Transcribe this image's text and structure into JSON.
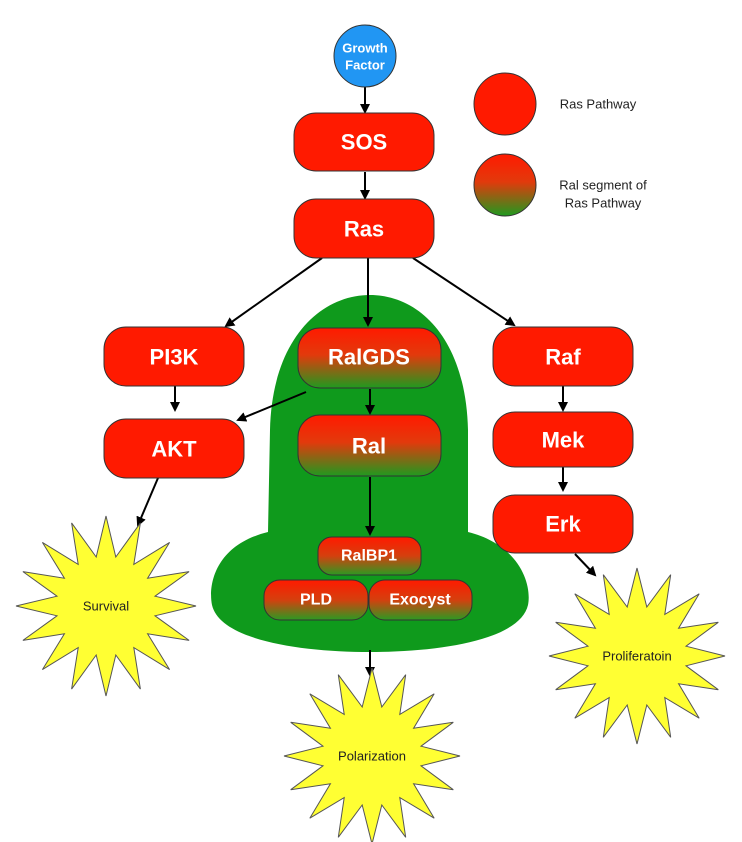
{
  "colors": {
    "ras_red": "#ff1a00",
    "green_blob": "#0f9a1c",
    "growth_blue": "#2196f3",
    "burst_yellow": "#ffff33",
    "gradient_top": "#ff1a00",
    "gradient_bottom": "#1f9a1f"
  },
  "nodes": {
    "growth_factor": {
      "line1": "Growth",
      "line2": "Factor"
    },
    "sos": "SOS",
    "ras": "Ras",
    "pi3k": "PI3K",
    "akt": "AKT",
    "ralgds": "RalGDS",
    "ral": "Ral",
    "ralbp1": "RalBP1",
    "pld": "PLD",
    "exocyst": "Exocyst",
    "raf": "Raf",
    "mek": "Mek",
    "erk": "Erk"
  },
  "outcomes": {
    "survival": "Survival",
    "polarization": "Polarization",
    "proliferation": "Proliferatoin"
  },
  "legend": {
    "ras_pathway": "Ras Pathway",
    "ral_segment_line1": "Ral segment of",
    "ral_segment_line2": "Ras Pathway"
  }
}
